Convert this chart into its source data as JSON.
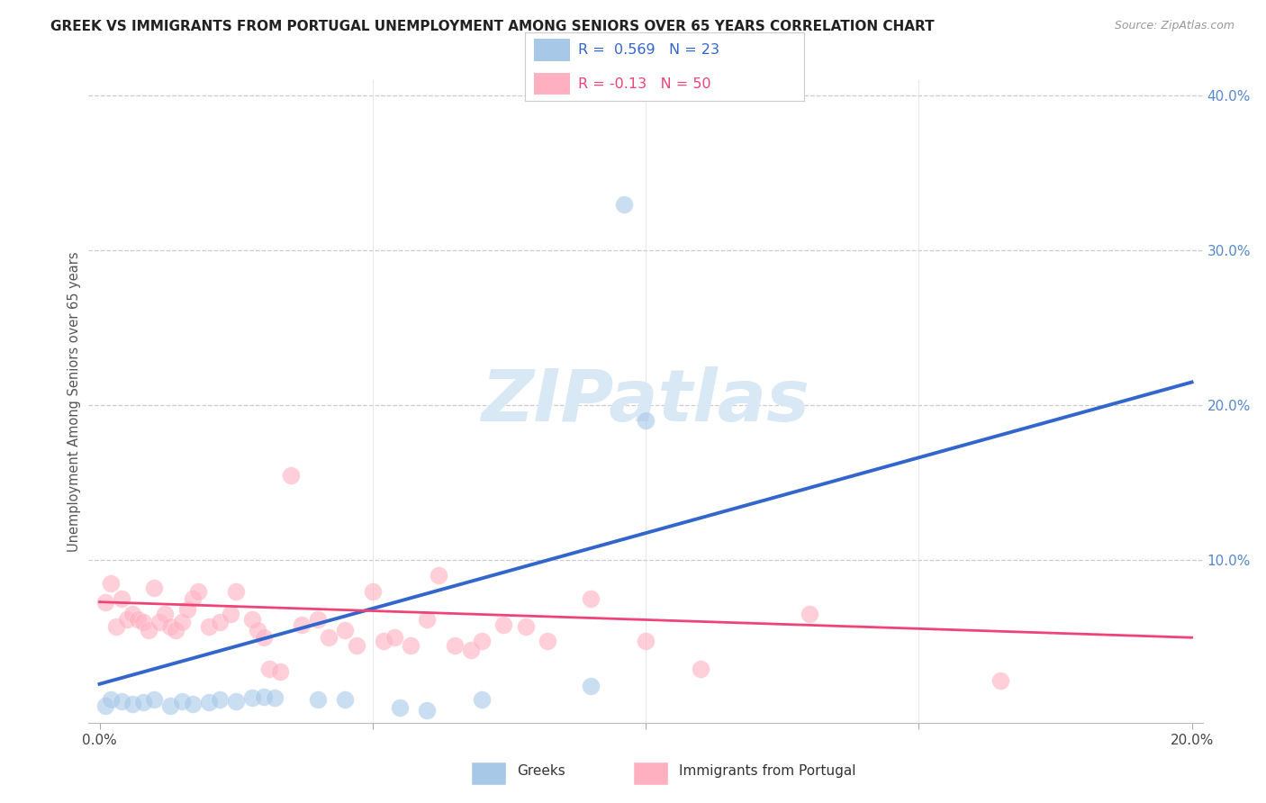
{
  "title": "GREEK VS IMMIGRANTS FROM PORTUGAL UNEMPLOYMENT AMONG SENIORS OVER 65 YEARS CORRELATION CHART",
  "source": "Source: ZipAtlas.com",
  "ylabel": "Unemployment Among Seniors over 65 years",
  "xlabel_greek": "Greeks",
  "xlabel_portugal": "Immigrants from Portugal",
  "xlim": [
    -0.002,
    0.202
  ],
  "ylim": [
    -0.005,
    0.41
  ],
  "xticks": [
    0.0,
    0.05,
    0.1,
    0.15,
    0.2
  ],
  "yticks": [
    0.0,
    0.1,
    0.2,
    0.3,
    0.4
  ],
  "greek_R": 0.569,
  "greek_N": 23,
  "portugal_R": -0.13,
  "portugal_N": 50,
  "greek_color": "#A8C8E8",
  "portugal_color": "#FFB0C0",
  "greek_line_color": "#3366CC",
  "portugal_line_color": "#EE4477",
  "yaxis_color": "#5588CC",
  "watermark_color": "#D8E8F4",
  "greek_points": [
    [
      0.001,
      0.006
    ],
    [
      0.002,
      0.01
    ],
    [
      0.004,
      0.009
    ],
    [
      0.006,
      0.007
    ],
    [
      0.008,
      0.008
    ],
    [
      0.01,
      0.01
    ],
    [
      0.013,
      0.006
    ],
    [
      0.015,
      0.009
    ],
    [
      0.017,
      0.007
    ],
    [
      0.02,
      0.008
    ],
    [
      0.022,
      0.01
    ],
    [
      0.025,
      0.009
    ],
    [
      0.028,
      0.011
    ],
    [
      0.03,
      0.012
    ],
    [
      0.032,
      0.011
    ],
    [
      0.04,
      0.01
    ],
    [
      0.045,
      0.01
    ],
    [
      0.055,
      0.005
    ],
    [
      0.06,
      0.003
    ],
    [
      0.07,
      0.01
    ],
    [
      0.09,
      0.019
    ],
    [
      0.096,
      0.33
    ],
    [
      0.1,
      0.19
    ]
  ],
  "portugal_points": [
    [
      0.001,
      0.073
    ],
    [
      0.002,
      0.085
    ],
    [
      0.003,
      0.057
    ],
    [
      0.004,
      0.075
    ],
    [
      0.005,
      0.062
    ],
    [
      0.006,
      0.065
    ],
    [
      0.007,
      0.062
    ],
    [
      0.008,
      0.06
    ],
    [
      0.009,
      0.055
    ],
    [
      0.01,
      0.082
    ],
    [
      0.011,
      0.06
    ],
    [
      0.012,
      0.065
    ],
    [
      0.013,
      0.057
    ],
    [
      0.014,
      0.055
    ],
    [
      0.015,
      0.06
    ],
    [
      0.016,
      0.068
    ],
    [
      0.017,
      0.075
    ],
    [
      0.018,
      0.08
    ],
    [
      0.02,
      0.057
    ],
    [
      0.022,
      0.06
    ],
    [
      0.024,
      0.065
    ],
    [
      0.025,
      0.08
    ],
    [
      0.028,
      0.062
    ],
    [
      0.029,
      0.055
    ],
    [
      0.03,
      0.05
    ],
    [
      0.031,
      0.03
    ],
    [
      0.033,
      0.028
    ],
    [
      0.035,
      0.155
    ],
    [
      0.037,
      0.058
    ],
    [
      0.04,
      0.062
    ],
    [
      0.042,
      0.05
    ],
    [
      0.045,
      0.055
    ],
    [
      0.047,
      0.045
    ],
    [
      0.05,
      0.08
    ],
    [
      0.052,
      0.048
    ],
    [
      0.054,
      0.05
    ],
    [
      0.057,
      0.045
    ],
    [
      0.06,
      0.062
    ],
    [
      0.062,
      0.09
    ],
    [
      0.065,
      0.045
    ],
    [
      0.068,
      0.042
    ],
    [
      0.07,
      0.048
    ],
    [
      0.074,
      0.058
    ],
    [
      0.078,
      0.057
    ],
    [
      0.082,
      0.048
    ],
    [
      0.09,
      0.075
    ],
    [
      0.1,
      0.048
    ],
    [
      0.11,
      0.03
    ],
    [
      0.13,
      0.065
    ],
    [
      0.165,
      0.022
    ]
  ],
  "greek_line": [
    0.0,
    0.2,
    0.02,
    0.215
  ],
  "portugal_line": [
    0.0,
    0.2,
    0.073,
    0.05
  ]
}
